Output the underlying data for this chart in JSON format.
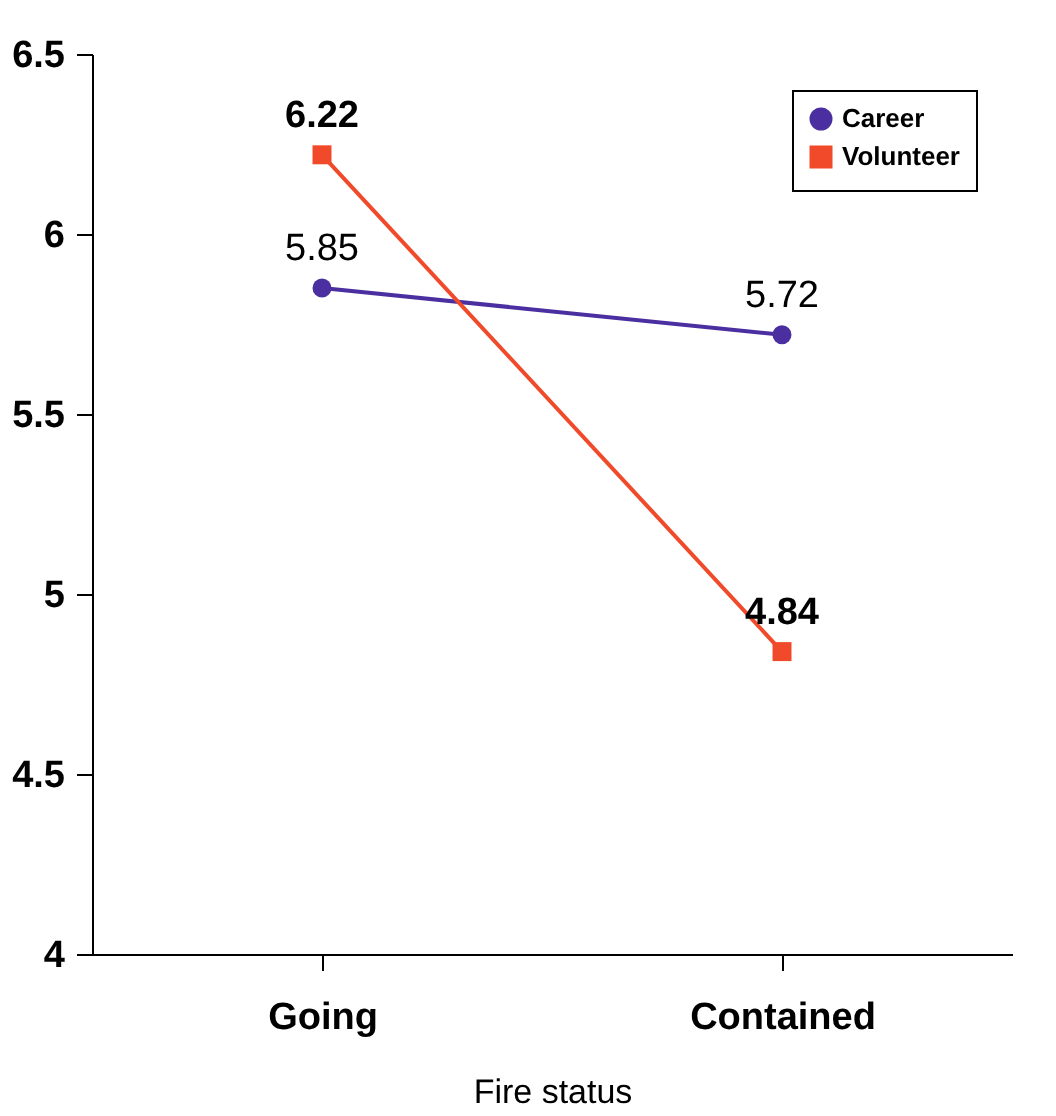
{
  "chart_data": {
    "type": "line",
    "xlabel": "Fire status",
    "categories": [
      "Going",
      "Contained"
    ],
    "ylim": [
      4,
      6.5
    ],
    "yticks": [
      4,
      4.5,
      5,
      5.5,
      6,
      6.5
    ],
    "grid": false,
    "legend": "top right",
    "series": [
      {
        "name": "Career",
        "color": "#4b2fa0",
        "marker": "circle",
        "values": [
          5.85,
          5.72
        ],
        "value_labels": [
          "5.85",
          "5.72"
        ]
      },
      {
        "name": "Volunteer",
        "color": "#f04a2a",
        "marker": "square",
        "values": [
          6.22,
          4.84
        ],
        "value_labels": [
          "6.22",
          "4.84"
        ]
      }
    ]
  }
}
